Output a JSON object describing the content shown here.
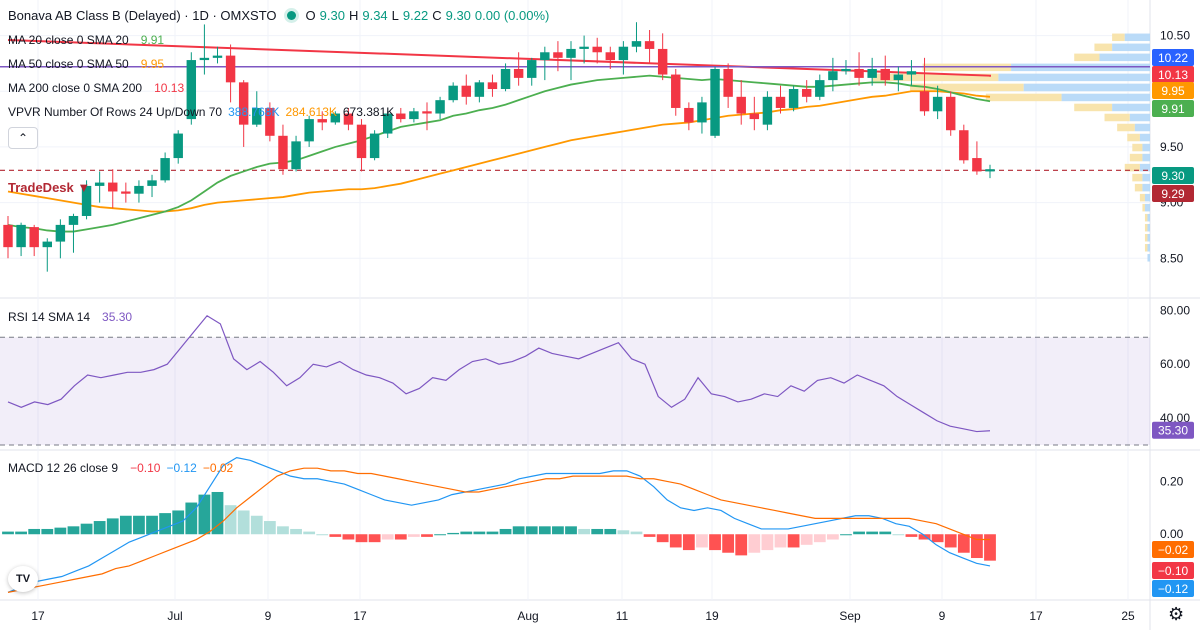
{
  "header": {
    "title": "Bonava AB Class B (Delayed) · 1D · OMXSTO",
    "ohlc": [
      {
        "k": "O",
        "v": "9.30"
      },
      {
        "k": "H",
        "v": "9.34"
      },
      {
        "k": "L",
        "v": "9.22"
      },
      {
        "k": "C",
        "v": "9.30"
      },
      {
        "k": "",
        "v": "0.00 (0.00%)"
      }
    ]
  },
  "legends": {
    "ma20": {
      "label": "MA 20 close 0 SMA 20",
      "value": "9.91",
      "color": "#4caf50"
    },
    "ma50": {
      "label": "MA 50 close 0 SMA 50",
      "value": "9.95",
      "color": "#ff9800"
    },
    "ma200": {
      "label": "MA 200 close 0 SMA 200",
      "value": "10.13",
      "color": "#f23645"
    },
    "vpvr": {
      "label": "VPVR Number Of Rows 24 Up/Down 70",
      "v1": "388.768K",
      "v2": "284.613K",
      "v3": "673.381K"
    },
    "rsi": {
      "label": "RSI 14 SMA 14",
      "value": "35.30",
      "color": "#7e57c2"
    },
    "macd": {
      "label": "MACD 12 26 close 9",
      "v1": "−0.10",
      "v2": "−0.12",
      "v3": "−0.02"
    }
  },
  "tradedesk_label": "TradeDesk",
  "collapse_icon": "chevron-up-icon",
  "logo_text": "TV",
  "colors": {
    "up": "#089981",
    "down": "#f23645",
    "ma20": "#4caf50",
    "ma50": "#ff9800",
    "ma200": "#f23645",
    "purple": "#7e57c2",
    "macd": "#2196f3",
    "signal": "#ff6d00"
  },
  "chart_data": [
    {
      "type": "candlestick",
      "title": "Bonava AB Class B (Delayed) · 1D · OMXSTO",
      "y_ticks": [
        "10.50",
        "10.00",
        "9.50",
        "9.00",
        "8.50"
      ],
      "ylim": [
        8.35,
        10.55
      ],
      "x_ticks": [
        "17",
        "Jul",
        "9",
        "17",
        "Aug",
        "11",
        "19",
        "Sep",
        "9",
        "17",
        "25"
      ],
      "price_labels": [
        {
          "text": "10.22",
          "value": 10.22,
          "color": "#2962ff"
        },
        {
          "text": "10.13",
          "value": 10.13,
          "color": "#f23645"
        },
        {
          "text": "9.95",
          "value": 9.95,
          "color": "#ff9800"
        },
        {
          "text": "9.91",
          "value": 9.91,
          "color": "#4caf50"
        },
        {
          "text": "9.30",
          "value": 9.3,
          "color": "#089981"
        },
        {
          "text": "9.29",
          "value": 9.29,
          "color": "#b22833"
        }
      ],
      "candles": [
        [
          8.8,
          8.88,
          8.5,
          8.6
        ],
        [
          8.6,
          8.82,
          8.52,
          8.8
        ],
        [
          8.78,
          8.8,
          8.52,
          8.6
        ],
        [
          8.6,
          8.68,
          8.38,
          8.65
        ],
        [
          8.65,
          8.85,
          8.5,
          8.8
        ],
        [
          8.8,
          8.9,
          8.55,
          8.88
        ],
        [
          8.88,
          9.2,
          8.85,
          9.15
        ],
        [
          9.15,
          9.28,
          9.0,
          9.18
        ],
        [
          9.18,
          9.3,
          8.95,
          9.1
        ],
        [
          9.1,
          9.18,
          9.0,
          9.08
        ],
        [
          9.08,
          9.2,
          9.0,
          9.15
        ],
        [
          9.15,
          9.25,
          9.05,
          9.2
        ],
        [
          9.2,
          9.45,
          9.18,
          9.4
        ],
        [
          9.4,
          9.65,
          9.35,
          9.62
        ],
        [
          9.75,
          10.35,
          9.7,
          10.28
        ],
        [
          10.28,
          10.6,
          10.15,
          10.3
        ],
        [
          10.3,
          10.4,
          10.25,
          10.32
        ],
        [
          10.32,
          10.42,
          9.9,
          10.08
        ],
        [
          10.08,
          10.1,
          9.5,
          9.7
        ],
        [
          9.7,
          10.0,
          9.68,
          9.85
        ],
        [
          9.85,
          9.9,
          9.55,
          9.6
        ],
        [
          9.6,
          9.7,
          9.25,
          9.3
        ],
        [
          9.3,
          9.6,
          9.28,
          9.55
        ],
        [
          9.55,
          9.78,
          9.5,
          9.75
        ],
        [
          9.75,
          9.82,
          9.65,
          9.72
        ],
        [
          9.72,
          9.82,
          9.7,
          9.8
        ],
        [
          9.8,
          9.85,
          9.65,
          9.7
        ],
        [
          9.7,
          9.75,
          9.28,
          9.4
        ],
        [
          9.4,
          9.65,
          9.38,
          9.62
        ],
        [
          9.62,
          9.82,
          9.58,
          9.8
        ],
        [
          9.8,
          9.85,
          9.72,
          9.75
        ],
        [
          9.75,
          9.85,
          9.72,
          9.82
        ],
        [
          9.82,
          9.9,
          9.65,
          9.8
        ],
        [
          9.8,
          9.95,
          9.75,
          9.92
        ],
        [
          9.92,
          10.08,
          9.9,
          10.05
        ],
        [
          10.05,
          10.15,
          9.88,
          9.95
        ],
        [
          9.95,
          10.1,
          9.9,
          10.08
        ],
        [
          10.08,
          10.15,
          9.95,
          10.02
        ],
        [
          10.02,
          10.25,
          10.0,
          10.2
        ],
        [
          10.2,
          10.35,
          10.05,
          10.12
        ],
        [
          10.12,
          10.3,
          10.05,
          10.28
        ],
        [
          10.28,
          10.4,
          10.1,
          10.35
        ],
        [
          10.35,
          10.45,
          10.18,
          10.3
        ],
        [
          10.3,
          10.45,
          10.1,
          10.38
        ],
        [
          10.38,
          10.5,
          10.25,
          10.4
        ],
        [
          10.4,
          10.48,
          10.25,
          10.35
        ],
        [
          10.35,
          10.4,
          10.2,
          10.28
        ],
        [
          10.28,
          10.45,
          10.15,
          10.4
        ],
        [
          10.4,
          10.62,
          10.35,
          10.45
        ],
        [
          10.45,
          10.55,
          10.25,
          10.38
        ],
        [
          10.38,
          10.52,
          10.1,
          10.15
        ],
        [
          10.15,
          10.2,
          9.78,
          9.85
        ],
        [
          9.85,
          9.9,
          9.65,
          9.72
        ],
        [
          9.72,
          9.95,
          9.62,
          9.9
        ],
        [
          9.6,
          10.22,
          9.58,
          10.2
        ],
        [
          10.2,
          10.25,
          9.85,
          9.95
        ],
        [
          9.95,
          10.1,
          9.7,
          9.8
        ],
        [
          9.8,
          9.95,
          9.65,
          9.75
        ],
        [
          9.7,
          10.0,
          9.65,
          9.95
        ],
        [
          9.95,
          10.05,
          9.8,
          9.85
        ],
        [
          9.85,
          10.05,
          9.82,
          10.02
        ],
        [
          10.02,
          10.1,
          9.9,
          9.95
        ],
        [
          9.95,
          10.15,
          9.92,
          10.1
        ],
        [
          10.1,
          10.3,
          10.0,
          10.18
        ],
        [
          10.18,
          10.28,
          10.15,
          10.2
        ],
        [
          10.2,
          10.35,
          10.05,
          10.12
        ],
        [
          10.12,
          10.3,
          10.05,
          10.2
        ],
        [
          10.2,
          10.32,
          10.05,
          10.1
        ],
        [
          10.1,
          10.22,
          10.0,
          10.15
        ],
        [
          10.15,
          10.28,
          10.05,
          10.18
        ],
        [
          10.0,
          10.3,
          9.78,
          9.82
        ],
        [
          9.82,
          10.05,
          9.75,
          9.95
        ],
        [
          9.95,
          10.0,
          9.6,
          9.65
        ],
        [
          9.65,
          9.7,
          9.35,
          9.38
        ],
        [
          9.4,
          9.55,
          9.25,
          9.28
        ],
        [
          9.28,
          9.34,
          9.22,
          9.3
        ]
      ],
      "ma20": [
        8.8,
        8.78,
        8.77,
        8.75,
        8.74,
        8.74,
        8.76,
        8.78,
        8.8,
        8.83,
        8.86,
        8.89,
        8.92,
        8.96,
        9.02,
        9.1,
        9.18,
        9.24,
        9.28,
        9.32,
        9.35,
        9.36,
        9.38,
        9.42,
        9.46,
        9.5,
        9.53,
        9.56,
        9.6,
        9.64,
        9.68,
        9.7,
        9.72,
        9.74,
        9.78,
        9.8,
        9.83,
        9.85,
        9.88,
        9.92,
        9.96,
        10.0,
        10.03,
        10.06,
        10.08,
        10.1,
        10.11,
        10.12,
        10.13,
        10.14,
        10.13,
        10.12,
        10.11,
        10.1,
        10.11,
        10.1,
        10.09,
        10.08,
        10.07,
        10.06,
        10.05,
        10.04,
        10.04,
        10.05,
        10.06,
        10.07,
        10.08,
        10.08,
        10.07,
        10.05,
        10.04,
        10.02,
        9.99,
        9.96,
        9.93,
        9.91
      ],
      "ma50": [
        9.1,
        9.08,
        9.06,
        9.04,
        9.02,
        9.0,
        8.98,
        8.96,
        8.95,
        8.94,
        8.93,
        8.92,
        8.92,
        8.93,
        8.95,
        8.98,
        9.0,
        9.01,
        9.02,
        9.03,
        9.04,
        9.05,
        9.07,
        9.09,
        9.1,
        9.11,
        9.12,
        9.12,
        9.13,
        9.15,
        9.17,
        9.2,
        9.23,
        9.26,
        9.29,
        9.32,
        9.35,
        9.38,
        9.41,
        9.44,
        9.47,
        9.5,
        9.53,
        9.56,
        9.58,
        9.6,
        9.62,
        9.64,
        9.66,
        9.68,
        9.7,
        9.71,
        9.72,
        9.74,
        9.76,
        9.78,
        9.79,
        9.8,
        9.81,
        9.83,
        9.84,
        9.86,
        9.87,
        9.89,
        9.91,
        9.93,
        9.95,
        9.96,
        9.98,
        10.0,
        10.0,
        10.0,
        9.99,
        9.98,
        9.96,
        9.95
      ],
      "ma200_range": [
        10.46,
        10.13
      ],
      "ma200_label": "10.13",
      "hline_price": 9.29,
      "volume_profile": [
        {
          "p": 10.48,
          "up": 0.05,
          "dn": 0.1
        },
        {
          "p": 10.39,
          "up": 0.07,
          "dn": 0.15
        },
        {
          "p": 10.3,
          "up": 0.1,
          "dn": 0.2
        },
        {
          "p": 10.21,
          "up": 0.35,
          "dn": 0.55
        },
        {
          "p": 10.12,
          "up": 0.5,
          "dn": 0.6
        },
        {
          "p": 10.03,
          "up": 0.45,
          "dn": 0.5
        },
        {
          "p": 9.94,
          "up": 0.3,
          "dn": 0.35
        },
        {
          "p": 9.85,
          "up": 0.15,
          "dn": 0.15
        },
        {
          "p": 9.76,
          "up": 0.1,
          "dn": 0.08
        },
        {
          "p": 9.67,
          "up": 0.07,
          "dn": 0.06
        },
        {
          "p": 9.58,
          "up": 0.05,
          "dn": 0.04
        },
        {
          "p": 9.49,
          "up": 0.04,
          "dn": 0.03
        },
        {
          "p": 9.4,
          "up": 0.05,
          "dn": 0.03
        },
        {
          "p": 9.31,
          "up": 0.06,
          "dn": 0.04
        },
        {
          "p": 9.22,
          "up": 0.04,
          "dn": 0.03
        },
        {
          "p": 9.13,
          "up": 0.03,
          "dn": 0.03
        },
        {
          "p": 9.04,
          "up": 0.02,
          "dn": 0.02
        },
        {
          "p": 8.95,
          "up": 0.01,
          "dn": 0.02
        },
        {
          "p": 8.86,
          "up": 0.01,
          "dn": 0.01
        },
        {
          "p": 8.77,
          "up": 0.01,
          "dn": 0.01
        },
        {
          "p": 8.68,
          "up": 0.01,
          "dn": 0.01
        },
        {
          "p": 8.59,
          "up": 0.01,
          "dn": 0.01
        },
        {
          "p": 8.5,
          "up": 0.0,
          "dn": 0.01
        }
      ]
    },
    {
      "type": "line",
      "title": "RSI 14 SMA 14",
      "y_ticks": [
        "80.00",
        "60.00",
        "40.00"
      ],
      "ylim": [
        30,
        82
      ],
      "band": [
        30,
        70
      ],
      "label_value": "35.30",
      "values": [
        46,
        44,
        46,
        45,
        47,
        52,
        56,
        55,
        56,
        57,
        57,
        58,
        60,
        66,
        72,
        78,
        75,
        62,
        58,
        61,
        57,
        52,
        55,
        60,
        59,
        61,
        58,
        56,
        55,
        53,
        49,
        51,
        55,
        54,
        58,
        61,
        62,
        60,
        61,
        63,
        66,
        64,
        63,
        62,
        64,
        66,
        68,
        62,
        60,
        48,
        44,
        47,
        55,
        49,
        48,
        46,
        47,
        49,
        48,
        52,
        50,
        54,
        55,
        53,
        56,
        54,
        52,
        48,
        45,
        42,
        39,
        37,
        36,
        35,
        35.3
      ],
      "values_sma": []
    },
    {
      "type": "bar",
      "title": "MACD 12 26 close 9",
      "y_ticks": [
        "0.20",
        "0.00",
        "−0.20"
      ],
      "ylim": [
        -0.23,
        0.3
      ],
      "labels": [
        {
          "text": "−0.02",
          "value": -0.02,
          "color": "#ff6d00"
        },
        {
          "text": "−0.10",
          "value": -0.1,
          "color": "#f23645"
        },
        {
          "text": "−0.12",
          "value": -0.12,
          "color": "#2196f3"
        }
      ],
      "histogram": [
        0.01,
        0.01,
        0.02,
        0.02,
        0.025,
        0.03,
        0.04,
        0.05,
        0.06,
        0.07,
        0.07,
        0.07,
        0.08,
        0.09,
        0.12,
        0.15,
        0.16,
        0.11,
        0.09,
        0.07,
        0.05,
        0.03,
        0.02,
        0.01,
        0.0,
        -0.01,
        -0.02,
        -0.03,
        -0.03,
        -0.02,
        -0.02,
        -0.01,
        -0.01,
        0.0,
        0.005,
        0.01,
        0.01,
        0.01,
        0.02,
        0.03,
        0.03,
        0.03,
        0.03,
        0.03,
        0.02,
        0.02,
        0.02,
        0.015,
        0.01,
        -0.01,
        -0.03,
        -0.05,
        -0.06,
        -0.05,
        -0.06,
        -0.07,
        -0.08,
        -0.07,
        -0.06,
        -0.05,
        -0.05,
        -0.04,
        -0.03,
        -0.02,
        0.0,
        0.01,
        0.01,
        0.01,
        0.0,
        -0.01,
        -0.02,
        -0.03,
        -0.05,
        -0.07,
        -0.09,
        -0.1
      ],
      "macd": [
        -0.22,
        -0.2,
        -0.18,
        -0.17,
        -0.16,
        -0.14,
        -0.12,
        -0.09,
        -0.06,
        -0.03,
        -0.01,
        0.01,
        0.03,
        0.05,
        0.1,
        0.18,
        0.26,
        0.29,
        0.28,
        0.26,
        0.24,
        0.22,
        0.21,
        0.21,
        0.2,
        0.19,
        0.17,
        0.15,
        0.13,
        0.12,
        0.11,
        0.12,
        0.13,
        0.15,
        0.16,
        0.17,
        0.18,
        0.19,
        0.21,
        0.22,
        0.23,
        0.23,
        0.23,
        0.23,
        0.23,
        0.24,
        0.24,
        0.22,
        0.18,
        0.13,
        0.1,
        0.09,
        0.1,
        0.09,
        0.06,
        0.04,
        0.02,
        0.02,
        0.02,
        0.03,
        0.04,
        0.05,
        0.06,
        0.07,
        0.07,
        0.06,
        0.04,
        0.03,
        0.0,
        -0.04,
        -0.07,
        -0.09,
        -0.11,
        -0.12
      ],
      "signal": [
        -0.22,
        -0.21,
        -0.2,
        -0.19,
        -0.18,
        -0.17,
        -0.16,
        -0.15,
        -0.13,
        -0.12,
        -0.1,
        -0.08,
        -0.06,
        -0.04,
        -0.02,
        0.01,
        0.05,
        0.1,
        0.14,
        0.18,
        0.22,
        0.24,
        0.25,
        0.25,
        0.24,
        0.24,
        0.23,
        0.23,
        0.22,
        0.21,
        0.2,
        0.19,
        0.18,
        0.17,
        0.16,
        0.16,
        0.17,
        0.18,
        0.19,
        0.2,
        0.21,
        0.21,
        0.22,
        0.22,
        0.22,
        0.22,
        0.22,
        0.21,
        0.21,
        0.2,
        0.19,
        0.17,
        0.15,
        0.13,
        0.12,
        0.11,
        0.1,
        0.09,
        0.08,
        0.07,
        0.06,
        0.06,
        0.06,
        0.06,
        0.06,
        0.06,
        0.06,
        0.06,
        0.05,
        0.04,
        0.02,
        0.0,
        -0.02,
        -0.02
      ]
    }
  ]
}
